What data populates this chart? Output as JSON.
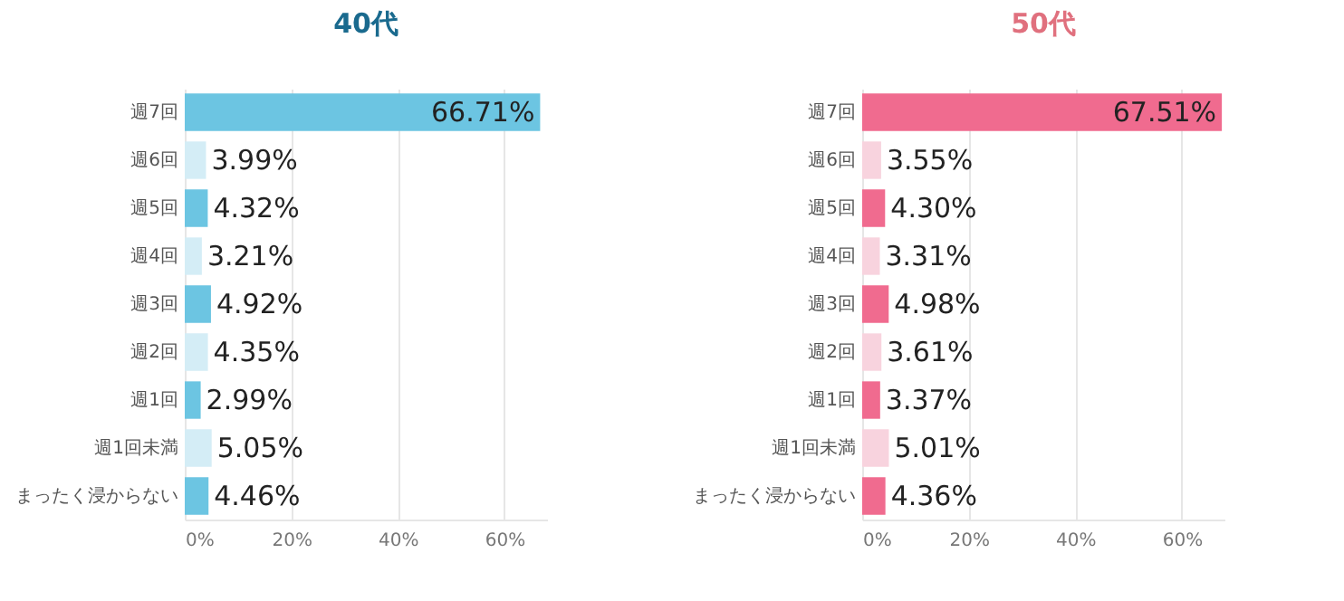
{
  "chart_data": [
    {
      "type": "bar",
      "orientation": "horizontal",
      "title": "40代",
      "categories": [
        "週7回",
        "週6回",
        "週5回",
        "週4回",
        "週3回",
        "週2回",
        "週1回",
        "週1回未満",
        "まったく浸からない"
      ],
      "values": [
        66.71,
        3.99,
        4.32,
        3.21,
        4.92,
        4.35,
        2.99,
        5.05,
        4.46
      ],
      "colors": [
        "#6cc5e2",
        "#d4edf6",
        "#6cc5e2",
        "#d4edf6",
        "#6cc5e2",
        "#d4edf6",
        "#6cc5e2",
        "#d4edf6",
        "#6cc5e2"
      ],
      "value_labels": [
        "66.71%",
        "3.99%",
        "4.32%",
        "3.21%",
        "4.92%",
        "4.35%",
        "2.99%",
        "5.05%",
        "4.46%"
      ],
      "xlim": [
        0,
        68
      ],
      "xticks": [
        {
          "value": 0,
          "label": "0%"
        },
        {
          "value": 20,
          "label": "20%"
        },
        {
          "value": 40,
          "label": "40%"
        },
        {
          "value": 60,
          "label": "60%"
        }
      ],
      "grid": "x"
    },
    {
      "type": "bar",
      "orientation": "horizontal",
      "title": "50代",
      "categories": [
        "週7回",
        "週6回",
        "週5回",
        "週4回",
        "週3回",
        "週2回",
        "週1回",
        "週1回未満",
        "まったく浸からない"
      ],
      "values": [
        67.51,
        3.55,
        4.3,
        3.31,
        4.98,
        3.61,
        3.37,
        5.01,
        4.36
      ],
      "colors": [
        "#f06b8f",
        "#f8d3de",
        "#f06b8f",
        "#f8d3de",
        "#f06b8f",
        "#f8d3de",
        "#f06b8f",
        "#f8d3de",
        "#f06b8f"
      ],
      "value_labels": [
        "67.51%",
        "3.55%",
        "4.30%",
        "3.31%",
        "4.98%",
        "3.61%",
        "3.37%",
        "5.01%",
        "4.36%"
      ],
      "xlim": [
        0,
        68
      ],
      "xticks": [
        {
          "value": 0,
          "label": "0%"
        },
        {
          "value": 20,
          "label": "20%"
        },
        {
          "value": 40,
          "label": "40%"
        },
        {
          "value": 60,
          "label": "60%"
        }
      ],
      "grid": "x"
    }
  ]
}
